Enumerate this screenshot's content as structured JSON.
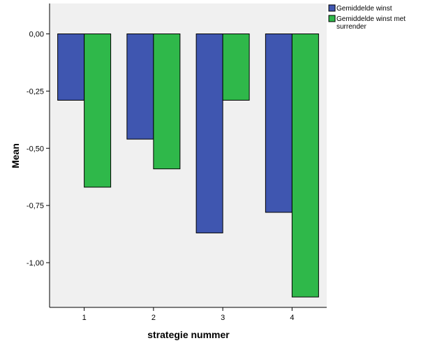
{
  "chart_data": {
    "type": "bar",
    "categories": [
      "1",
      "2",
      "3",
      "4"
    ],
    "series": [
      {
        "name": "Gemiddelde winst",
        "values": [
          -0.29,
          -0.46,
          -0.87,
          -0.78
        ],
        "color": "#3f56b0"
      },
      {
        "name": "Gemiddelde winst met surrender",
        "values": [
          -0.67,
          -0.59,
          -0.29,
          -1.15
        ],
        "color": "#2fb84a"
      }
    ],
    "xlabel": "strategie nummer",
    "ylabel": "Mean",
    "ylim": [
      -1.2,
      0.13
    ],
    "yticks": [
      0,
      -0.25,
      -0.5,
      -0.75,
      -1.0
    ],
    "ytick_labels": [
      "0,00",
      "-0,25",
      "-0,50",
      "-0,75",
      "-1,00"
    ],
    "legend": {
      "placement": "top-right outside",
      "entries": [
        {
          "lines": [
            "Gemiddelde winst"
          ]
        },
        {
          "lines": [
            "Gemiddelde winst met",
            "surrender"
          ]
        }
      ]
    },
    "plot_background": "#f0f0f0",
    "grid": false
  }
}
